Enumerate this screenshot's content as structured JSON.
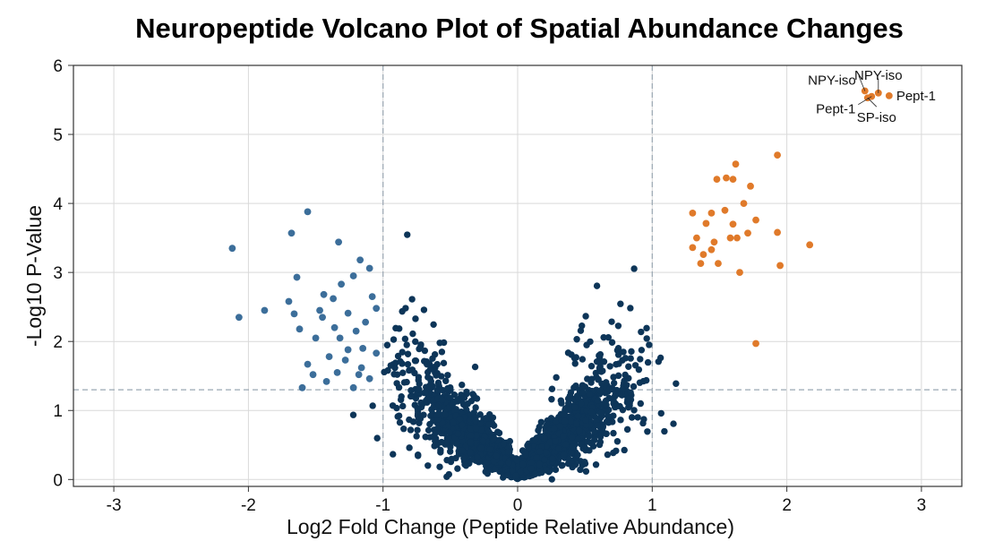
{
  "chart_data": {
    "type": "scatter",
    "title": "Neuropeptide Volcano Plot of Spatial Abundance Changes",
    "xlabel": "Log2 Fold Change (Peptide Relative Abundance)",
    "ylabel": "-Log10 P-Value",
    "xlim": [
      -3.3,
      3.3
    ],
    "ylim": [
      -0.1,
      6.0
    ],
    "xticks": [
      "-3",
      "-2",
      "-1",
      "0",
      "1",
      "2",
      "3"
    ],
    "yticks": [
      "0",
      "1",
      "2",
      "3",
      "4",
      "5",
      "6"
    ],
    "grid": true,
    "thresholds": {
      "fold_change": [
        -1,
        1
      ],
      "neg_log10_p": 1.3
    },
    "colors": {
      "nonsignificant": "#0d3558",
      "downregulated": "#3c6e9a",
      "upregulated": "#e07a2a",
      "threshold_line": "#9aa7b3",
      "grid": "#d9d9d9"
    },
    "nonsignificant_count": 2600,
    "downregulated": [
      [
        -2.12,
        3.35
      ],
      [
        -2.07,
        2.35
      ],
      [
        -1.88,
        2.45
      ],
      [
        -1.68,
        3.57
      ],
      [
        -1.64,
        2.93
      ],
      [
        -1.56,
        3.88
      ],
      [
        -1.33,
        3.44
      ],
      [
        -1.22,
        2.95
      ],
      [
        -1.17,
        3.18
      ],
      [
        -1.1,
        3.06
      ],
      [
        -1.7,
        2.58
      ],
      [
        -1.62,
        2.18
      ],
      [
        -1.56,
        1.67
      ],
      [
        -1.45,
        2.35
      ],
      [
        -1.4,
        1.78
      ],
      [
        -1.37,
        2.62
      ],
      [
        -1.32,
        2.05
      ],
      [
        -1.26,
        2.41
      ],
      [
        -1.2,
        2.15
      ],
      [
        -1.15,
        1.9
      ],
      [
        -1.42,
        1.42
      ],
      [
        -1.34,
        1.55
      ],
      [
        -1.28,
        1.73
      ],
      [
        -1.22,
        1.33
      ],
      [
        -1.16,
        1.62
      ],
      [
        -1.1,
        1.46
      ],
      [
        -1.05,
        1.83
      ],
      [
        -1.05,
        2.48
      ],
      [
        -1.6,
        1.33
      ],
      [
        -1.5,
        2.05
      ],
      [
        -1.44,
        2.68
      ],
      [
        -1.13,
        2.28
      ],
      [
        -1.31,
        2.83
      ],
      [
        -1.08,
        2.65
      ],
      [
        -1.47,
        2.45
      ],
      [
        -1.26,
        1.88
      ],
      [
        -1.18,
        1.52
      ],
      [
        -1.36,
        2.2
      ],
      [
        -1.52,
        1.52
      ],
      [
        -1.66,
        2.4
      ]
    ],
    "upregulated": [
      [
        1.93,
        4.7
      ],
      [
        1.95,
        3.1
      ],
      [
        2.17,
        3.4
      ],
      [
        1.77,
        1.97
      ],
      [
        1.62,
        4.57
      ],
      [
        1.6,
        4.35
      ],
      [
        1.68,
        4.0
      ],
      [
        1.73,
        4.25
      ],
      [
        1.48,
        4.35
      ],
      [
        1.55,
        4.37
      ],
      [
        1.3,
        3.86
      ],
      [
        1.4,
        3.71
      ],
      [
        1.33,
        3.5
      ],
      [
        1.44,
        3.33
      ],
      [
        1.38,
        3.26
      ],
      [
        1.3,
        3.36
      ],
      [
        1.36,
        3.13
      ],
      [
        1.49,
        3.13
      ],
      [
        1.58,
        3.5
      ],
      [
        1.65,
        3.0
      ],
      [
        1.77,
        3.76
      ],
      [
        1.93,
        3.58
      ],
      [
        1.63,
        3.5
      ],
      [
        1.46,
        3.44
      ],
      [
        1.54,
        3.9
      ],
      [
        1.71,
        3.57
      ],
      [
        1.44,
        3.86
      ],
      [
        1.6,
        3.7
      ]
    ],
    "annotations": [
      {
        "label": "NPY-iso",
        "x": 2.58,
        "y": 5.63,
        "align": "left"
      },
      {
        "label": "NPY-iso",
        "x": 2.68,
        "y": 5.6,
        "align": "top"
      },
      {
        "label": "Pept-1",
        "x": 2.76,
        "y": 5.56,
        "align": "right"
      },
      {
        "label": "Pept-1",
        "x": 2.63,
        "y": 5.55,
        "align": "left-below"
      },
      {
        "label": "SP-iso",
        "x": 2.6,
        "y": 5.53,
        "align": "below"
      }
    ]
  }
}
